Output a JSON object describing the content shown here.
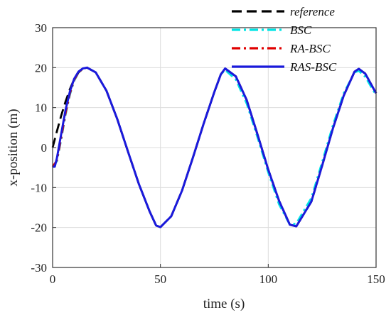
{
  "chart_data": {
    "type": "line",
    "xlabel": "time (s)",
    "ylabel": "x-position (m)",
    "xlim": [
      0,
      150
    ],
    "ylim": [
      -30,
      30
    ],
    "x_ticks": [
      0,
      50,
      100,
      150
    ],
    "y_ticks": [
      -30,
      -20,
      -10,
      0,
      10,
      20,
      30
    ],
    "grid": true,
    "legend_position": "top-right",
    "series": [
      {
        "name": "reference",
        "color": "#000000",
        "style": "dashed",
        "points": [
          [
            0,
            0
          ],
          [
            2,
            4.1
          ],
          [
            4,
            8
          ],
          [
            6,
            11.5
          ],
          [
            8,
            14.6
          ],
          [
            10,
            17.1
          ],
          [
            12,
            18.8
          ],
          [
            14,
            19.8
          ],
          [
            16,
            20
          ],
          [
            20,
            18.8
          ],
          [
            25,
            14.2
          ],
          [
            30,
            7.1
          ],
          [
            35,
            -1.1
          ],
          [
            40,
            -9.1
          ],
          [
            45,
            -16
          ],
          [
            48,
            -19.5
          ],
          [
            50,
            -19.9
          ],
          [
            55,
            -17.2
          ],
          [
            60,
            -10.8
          ],
          [
            65,
            -2.6
          ],
          [
            70,
            5.9
          ],
          [
            75,
            13.9
          ],
          [
            78,
            18.3
          ],
          [
            80,
            19.8
          ],
          [
            85,
            17.8
          ],
          [
            90,
            11.9
          ],
          [
            95,
            3.3
          ],
          [
            100,
            -5.5
          ],
          [
            105,
            -13.3
          ],
          [
            110,
            -19.3
          ],
          [
            113,
            -19.7
          ],
          [
            120,
            -13.5
          ],
          [
            125,
            -4.5
          ],
          [
            130,
            4.8
          ],
          [
            135,
            13
          ],
          [
            140,
            19
          ],
          [
            142,
            19.7
          ],
          [
            145,
            18.5
          ],
          [
            150,
            13.6
          ]
        ]
      },
      {
        "name": "BSC",
        "color": "#00e5e5",
        "style": "dashdot",
        "points": [
          [
            0,
            -4.8
          ],
          [
            2,
            -3.4
          ],
          [
            4,
            2
          ],
          [
            6,
            8.2
          ],
          [
            8,
            13.2
          ],
          [
            10,
            16.7
          ],
          [
            12,
            18.7
          ],
          [
            14,
            19.7
          ],
          [
            16,
            20
          ],
          [
            20,
            18.8
          ],
          [
            25,
            14.2
          ],
          [
            30,
            7.1
          ],
          [
            35,
            -1.1
          ],
          [
            40,
            -9.1
          ],
          [
            45,
            -16
          ],
          [
            48,
            -19.5
          ],
          [
            50,
            -19.9
          ],
          [
            55,
            -17.2
          ],
          [
            60,
            -10.8
          ],
          [
            65,
            -2.6
          ],
          [
            70,
            5.9
          ],
          [
            75,
            13.9
          ],
          [
            78,
            18.3
          ],
          [
            80,
            19.4
          ],
          [
            85,
            17
          ],
          [
            90,
            11
          ],
          [
            95,
            2.6
          ],
          [
            100,
            -6.2
          ],
          [
            105,
            -14.2
          ],
          [
            110,
            -19.3
          ],
          [
            113,
            -19
          ],
          [
            120,
            -12.6
          ],
          [
            125,
            -3.6
          ],
          [
            130,
            5.6
          ],
          [
            135,
            13.6
          ],
          [
            140,
            18.8
          ],
          [
            142,
            19.2
          ],
          [
            145,
            17.7
          ],
          [
            150,
            13.1
          ]
        ]
      },
      {
        "name": "RA-BSC",
        "color": "#e00000",
        "style": "dashdot",
        "points": [
          [
            0,
            -4.8
          ],
          [
            2,
            -3.2
          ],
          [
            4,
            2.4
          ],
          [
            6,
            8.6
          ],
          [
            8,
            13.5
          ],
          [
            10,
            16.9
          ],
          [
            12,
            18.8
          ],
          [
            14,
            19.7
          ],
          [
            16,
            20
          ],
          [
            20,
            18.8
          ],
          [
            25,
            14.2
          ],
          [
            30,
            7.1
          ],
          [
            35,
            -1.1
          ],
          [
            40,
            -9.1
          ],
          [
            45,
            -16
          ],
          [
            48,
            -19.5
          ],
          [
            50,
            -19.9
          ],
          [
            55,
            -17.2
          ],
          [
            60,
            -10.8
          ],
          [
            65,
            -2.6
          ],
          [
            70,
            5.9
          ],
          [
            75,
            13.9
          ],
          [
            78,
            18.3
          ],
          [
            80,
            19.8
          ],
          [
            85,
            17.8
          ],
          [
            90,
            11.9
          ],
          [
            95,
            3.3
          ],
          [
            100,
            -5.5
          ],
          [
            105,
            -13.3
          ],
          [
            110,
            -19.3
          ],
          [
            113,
            -19.7
          ],
          [
            120,
            -13.5
          ],
          [
            125,
            -4.5
          ],
          [
            130,
            4.8
          ],
          [
            135,
            13
          ],
          [
            140,
            19
          ],
          [
            142,
            19.7
          ],
          [
            145,
            18.5
          ],
          [
            150,
            13.6
          ]
        ]
      },
      {
        "name": "RAS-BSC",
        "color": "#1a1adc",
        "style": "solid",
        "points": [
          [
            0,
            -4.8
          ],
          [
            1,
            -4.8
          ],
          [
            2,
            -2.6
          ],
          [
            4,
            3.4
          ],
          [
            6,
            9.4
          ],
          [
            8,
            14
          ],
          [
            10,
            17.2
          ],
          [
            12,
            19
          ],
          [
            14,
            19.8
          ],
          [
            16,
            20
          ],
          [
            20,
            18.8
          ],
          [
            25,
            14.2
          ],
          [
            30,
            7.1
          ],
          [
            35,
            -1.1
          ],
          [
            40,
            -9.1
          ],
          [
            45,
            -16
          ],
          [
            48,
            -19.5
          ],
          [
            50,
            -19.9
          ],
          [
            55,
            -17.2
          ],
          [
            60,
            -10.8
          ],
          [
            65,
            -2.6
          ],
          [
            70,
            5.9
          ],
          [
            75,
            13.9
          ],
          [
            78,
            18.3
          ],
          [
            80,
            19.8
          ],
          [
            85,
            17.8
          ],
          [
            90,
            11.9
          ],
          [
            95,
            3.3
          ],
          [
            100,
            -5.5
          ],
          [
            105,
            -13.3
          ],
          [
            110,
            -19.3
          ],
          [
            113,
            -19.7
          ],
          [
            120,
            -13.5
          ],
          [
            125,
            -4.5
          ],
          [
            130,
            4.8
          ],
          [
            135,
            13
          ],
          [
            140,
            19
          ],
          [
            142,
            19.7
          ],
          [
            145,
            18.5
          ],
          [
            150,
            13.6
          ]
        ]
      }
    ]
  }
}
